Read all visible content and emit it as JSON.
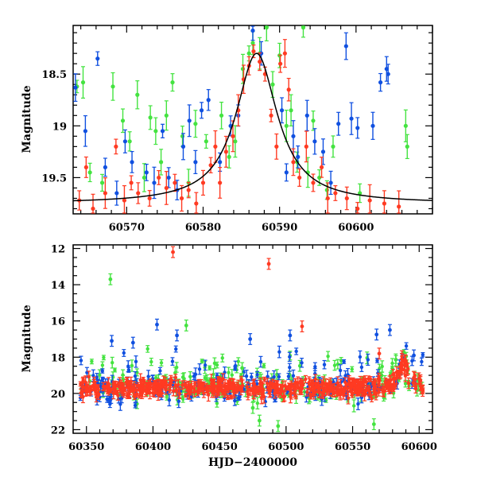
{
  "colors": {
    "green": "#44e340",
    "blue": "#1050e0",
    "red": "#ff3a22",
    "model": "#000000"
  },
  "chart_data": [
    {
      "type": "scatter",
      "ylabel": "Magnitude",
      "xlabel": "",
      "xlim": [
        60563,
        60610
      ],
      "ylim": [
        19.85,
        18.03
      ],
      "y_inverted": true,
      "xticks": [
        "60570",
        "60580",
        "60590",
        "60600"
      ],
      "yticks": [
        "18.5",
        "19",
        "19.5"
      ],
      "model_curve": {
        "t0": 60587,
        "peak_mag": 18.3,
        "base_mag": 19.75,
        "width": 3.3
      },
      "series": [
        {
          "color": "green",
          "points": [
            [
              60563.5,
              18.62
            ],
            [
              60564.3,
              18.58
            ],
            [
              60565.2,
              19.45
            ],
            [
              60566.8,
              19.55
            ],
            [
              60568.2,
              18.62
            ],
            [
              60569.5,
              18.95
            ],
            [
              60570.4,
              19.15
            ],
            [
              60571.4,
              18.7
            ],
            [
              60572.3,
              19.5
            ],
            [
              60573.1,
              18.92
            ],
            [
              60573.8,
              19.05
            ],
            [
              60574.5,
              19.35
            ],
            [
              60575.2,
              18.9
            ],
            [
              60576,
              18.58
            ],
            [
              60577.3,
              19.1
            ],
            [
              60578.1,
              19.55
            ],
            [
              60579,
              18.98
            ],
            [
              60580.4,
              19.15
            ],
            [
              60582.4,
              18.9
            ],
            [
              60583.4,
              19.3
            ],
            [
              60584.2,
              19.15
            ],
            [
              60585.2,
              18.45
            ],
            [
              60586,
              18.3
            ],
            [
              60586.5,
              18.2
            ],
            [
              60587.4,
              18.3
            ],
            [
              60588.3,
              18.05
            ],
            [
              60589.1,
              18.6
            ],
            [
              60590,
              18.32
            ],
            [
              60590.9,
              19.0
            ],
            [
              60591.5,
              18.85
            ],
            [
              60592.3,
              19.35
            ],
            [
              60593.1,
              18.05
            ],
            [
              60593.7,
              19.45
            ],
            [
              60594.4,
              18.95
            ],
            [
              60595.2,
              19.5
            ],
            [
              60596.2,
              19.62
            ],
            [
              60597,
              19.2
            ],
            [
              60600.5,
              19.65
            ],
            [
              60606.5,
              19.0
            ],
            [
              60606.7,
              19.2
            ]
          ]
        },
        {
          "color": "blue",
          "points": [
            [
              60563.3,
              18.63
            ],
            [
              60564.6,
              19.05
            ],
            [
              60566.2,
              18.35
            ],
            [
              60567.2,
              19.4
            ],
            [
              60568.7,
              19.65
            ],
            [
              60569.8,
              19.15
            ],
            [
              60570.7,
              19.35
            ],
            [
              60572.6,
              19.45
            ],
            [
              60573.6,
              19.55
            ],
            [
              60574.7,
              19.05
            ],
            [
              60575.5,
              19.5
            ],
            [
              60576.6,
              19.62
            ],
            [
              60577.4,
              19.2
            ],
            [
              60578.2,
              18.95
            ],
            [
              60579,
              19.35
            ],
            [
              60579.8,
              18.85
            ],
            [
              60580.7,
              18.75
            ],
            [
              60582.2,
              19.35
            ],
            [
              60583.6,
              19.0
            ],
            [
              60584.6,
              18.9
            ],
            [
              60586.5,
              18.08
            ],
            [
              60587.6,
              18.3
            ],
            [
              60590.3,
              18.85
            ],
            [
              60590.9,
              19.45
            ],
            [
              60591.8,
              19.1
            ],
            [
              60592.4,
              19.3
            ],
            [
              60593.6,
              18.9
            ],
            [
              60594.6,
              19.15
            ],
            [
              60595.7,
              19.25
            ],
            [
              60596.7,
              19.55
            ],
            [
              60597.7,
              18.98
            ],
            [
              60598.7,
              18.23
            ],
            [
              60599.4,
              18.93
            ],
            [
              60600.2,
              19.02
            ],
            [
              60602.2,
              19.0
            ],
            [
              60603.2,
              18.58
            ],
            [
              60604,
              18.45
            ],
            [
              60604.2,
              18.5
            ]
          ]
        },
        {
          "color": "red",
          "points": [
            [
              60563.8,
              19.72
            ],
            [
              60564.7,
              19.4
            ],
            [
              60565.6,
              19.8
            ],
            [
              60567.2,
              19.65
            ],
            [
              60568.6,
              19.2
            ],
            [
              60569.7,
              19.72
            ],
            [
              60570.6,
              19.55
            ],
            [
              60571.5,
              19.65
            ],
            [
              60573,
              19.7
            ],
            [
              60574.2,
              19.5
            ],
            [
              60575.2,
              19.6
            ],
            [
              60576.3,
              19.55
            ],
            [
              60577.2,
              19.7
            ],
            [
              60578.1,
              19.62
            ],
            [
              60579.1,
              19.75
            ],
            [
              60580,
              19.55
            ],
            [
              60581,
              19.38
            ],
            [
              60581.6,
              19.2
            ],
            [
              60582.2,
              19.55
            ],
            [
              60583,
              19.25
            ],
            [
              60583.9,
              19.1
            ],
            [
              60584.6,
              18.85
            ],
            [
              60585.3,
              18.55
            ],
            [
              60586,
              18.42
            ],
            [
              60586.6,
              18.28
            ],
            [
              60587.4,
              18.38
            ],
            [
              60588.1,
              18.5
            ],
            [
              60588.9,
              18.9
            ],
            [
              60589.6,
              19.2
            ],
            [
              60590.1,
              18.4
            ],
            [
              60590.7,
              18.3
            ],
            [
              60591.2,
              18.65
            ],
            [
              60591.8,
              19.35
            ],
            [
              60592.6,
              19.5
            ],
            [
              60593.5,
              19.2
            ],
            [
              60594.4,
              19.55
            ],
            [
              60595.5,
              19.4
            ],
            [
              60596.3,
              19.7
            ],
            [
              60597.3,
              19.65
            ],
            [
              60598.8,
              19.7
            ],
            [
              60600.2,
              19.8
            ],
            [
              60601.8,
              19.72
            ],
            [
              60603.7,
              19.75
            ],
            [
              60605.6,
              19.78
            ]
          ]
        }
      ]
    },
    {
      "type": "scatter",
      "ylabel": "Magnitude",
      "xlabel": "HJD−2400000",
      "xlim": [
        60340,
        60610
      ],
      "ylim": [
        22.2,
        11.8
      ],
      "y_inverted": true,
      "xticks": [
        "60350",
        "60400",
        "60450",
        "60500",
        "60550",
        "60600"
      ],
      "yticks": [
        "12",
        "14",
        "16",
        "18",
        "20",
        "22"
      ],
      "baseline_mag": 19.7,
      "outliers": [
        {
          "color": "red",
          "points": [
            [
              60415,
              12.2
            ],
            [
              60487,
              12.85
            ],
            [
              60512,
              16.3
            ],
            [
              60570,
              17.8
            ],
            [
              60590,
              18.2
            ]
          ]
        },
        {
          "color": "green",
          "points": [
            [
              60368,
              13.7
            ],
            [
              60425,
              16.25
            ],
            [
              60467,
              18.6
            ],
            [
              60475,
              20.8
            ],
            [
              60480,
              21.5
            ],
            [
              60494,
              21.8
            ],
            [
              60566,
              21.7
            ]
          ]
        },
        {
          "color": "blue",
          "points": [
            [
              60369,
              17.1
            ],
            [
              60385,
              17.2
            ],
            [
              60403,
              16.2
            ],
            [
              60418,
              16.8
            ],
            [
              60473,
              17.0
            ],
            [
              60503,
              16.8
            ],
            [
              60568,
              16.75
            ],
            [
              60578,
              16.5
            ],
            [
              60596,
              17.9
            ]
          ]
        }
      ]
    }
  ]
}
